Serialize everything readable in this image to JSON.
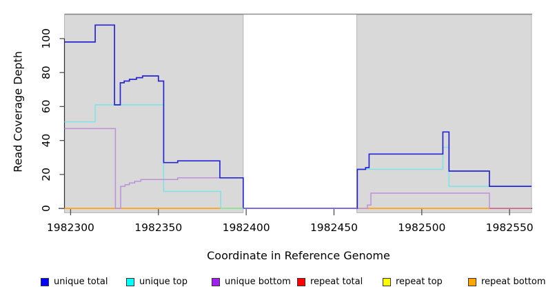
{
  "chart_data": {
    "type": "line",
    "title": "",
    "xlabel": "Coordinate in Reference Genome",
    "ylabel": "Read Coverage Depth",
    "xlim": [
      1982296.5,
      1982562.5
    ],
    "ylim": [
      -3.2,
      114.4
    ],
    "x_ticks": [
      1982300,
      1982350,
      1982400,
      1982450,
      1982500,
      1982550
    ],
    "y_ticks": [
      0,
      20,
      40,
      60,
      80,
      100
    ],
    "grid": false,
    "legend_position": "bottom",
    "colors": {
      "panel_region_fill": "#D9D9D9",
      "panel_region_border": "#B5B5B5",
      "panel_top_line": "#8F8F8F",
      "axis": "#2B2B2B",
      "text": "#000000"
    },
    "coverage_regions": [
      {
        "start": 1982296.5,
        "end": 1982398.3
      },
      {
        "start": 1982463.0,
        "end": 1982562.5
      }
    ],
    "gap_region": {
      "start": 1982398.3,
      "end": 1982463.0
    },
    "series": [
      {
        "name": "repeat total",
        "color": "#D9648C",
        "width": 1.6,
        "end": 1982562.5,
        "steps": [
          [
            1982296.5,
            0
          ]
        ]
      },
      {
        "name": "repeat top",
        "color": "#F5E642",
        "width": 1.6,
        "end": 1982538.5,
        "steps": [
          [
            1982296.5,
            0
          ]
        ]
      },
      {
        "name": "repeat bottom",
        "color": "#FFA41E",
        "width": 1.7,
        "end": 1982538.5,
        "steps": [
          [
            1982296.5,
            0
          ]
        ]
      },
      {
        "name": "unique top",
        "color": "#7CE3E8",
        "width": 1.5,
        "end": 1982562.5,
        "steps": [
          [
            1982296.5,
            51
          ],
          [
            1982314,
            61
          ],
          [
            1982353,
            10
          ],
          [
            1982385.5,
            0
          ],
          [
            1982463.3,
            23
          ],
          [
            1982512,
            36
          ],
          [
            1982515.5,
            13
          ]
        ]
      },
      {
        "name": "unique bottom",
        "color": "#BE8FD9",
        "width": 1.5,
        "end": 1982538.5,
        "steps": [
          [
            1982296.5,
            47
          ],
          [
            1982325.5,
            0
          ],
          [
            1982328.5,
            13
          ],
          [
            1982331,
            14
          ],
          [
            1982333.5,
            15
          ],
          [
            1982336.5,
            16
          ],
          [
            1982340,
            17
          ],
          [
            1982361,
            18
          ],
          [
            1982398.3,
            0
          ],
          [
            1982469,
            2
          ],
          [
            1982471,
            9
          ],
          [
            1982538.5,
            0
          ]
        ]
      },
      {
        "name": "unique total",
        "color": "#2525D6",
        "width": 1.7,
        "end": 1982562.5,
        "steps": [
          [
            1982296.5,
            98
          ],
          [
            1982314,
            108
          ],
          [
            1982325,
            61
          ],
          [
            1982328.3,
            74
          ],
          [
            1982330.5,
            75
          ],
          [
            1982333.5,
            76
          ],
          [
            1982337.5,
            77
          ],
          [
            1982341,
            78
          ],
          [
            1982350,
            75
          ],
          [
            1982353,
            27
          ],
          [
            1982361,
            28
          ],
          [
            1982385,
            18
          ],
          [
            1982398.3,
            0
          ],
          [
            1982463.3,
            23
          ],
          [
            1982468,
            24
          ],
          [
            1982470,
            32
          ],
          [
            1982512,
            45
          ],
          [
            1982515.5,
            22
          ],
          [
            1982538.5,
            13
          ]
        ]
      }
    ],
    "zero_overpaints": [
      {
        "name": "unique-top-at-zero",
        "color": "#8FE3A0",
        "start": 1982385.5,
        "end": 1982398.3
      },
      {
        "name": "unique-at-zero-gap",
        "color": "#7D6BE8",
        "start": 1982398.3,
        "end": 1982463.3
      }
    ],
    "legend": [
      {
        "label": "unique total",
        "color": "#0000FF"
      },
      {
        "label": "unique top",
        "color": "#00FFFF"
      },
      {
        "label": "unique bottom",
        "color": "#A020F0"
      },
      {
        "label": "repeat total",
        "color": "#FF0000"
      },
      {
        "label": "repeat top",
        "color": "#FFFF00"
      },
      {
        "label": "repeat bottom",
        "color": "#FFA500"
      }
    ]
  }
}
